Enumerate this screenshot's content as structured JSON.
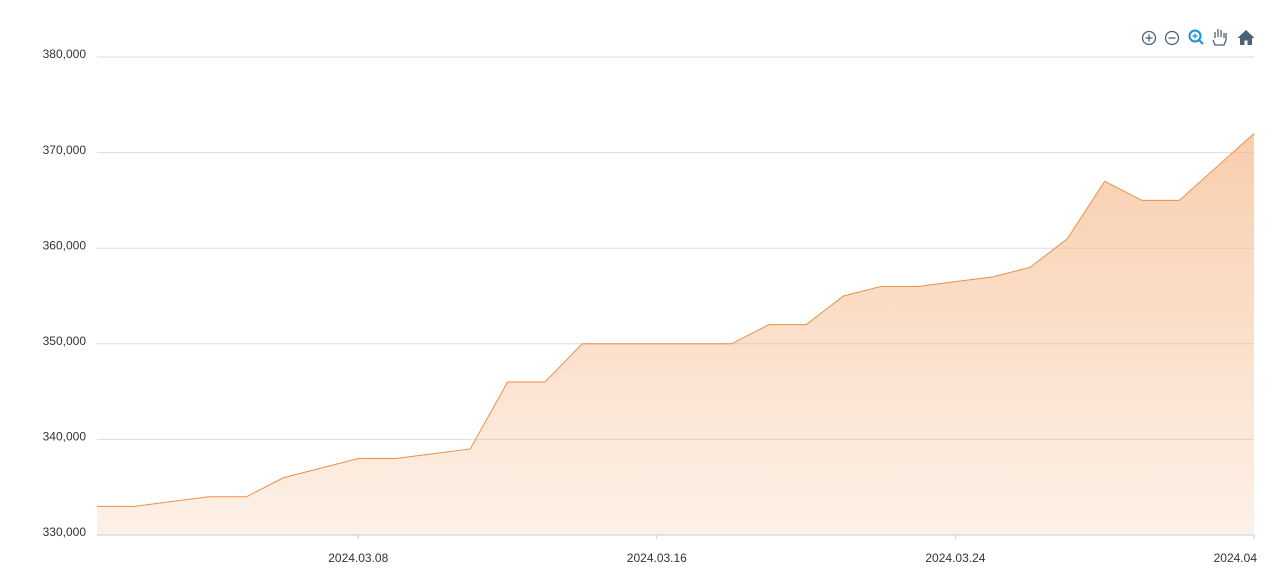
{
  "chart_data": {
    "type": "area",
    "x": [
      "2024.03.01",
      "2024.03.02",
      "2024.03.03",
      "2024.03.04",
      "2024.03.05",
      "2024.03.06",
      "2024.03.07",
      "2024.03.08",
      "2024.03.09",
      "2024.03.10",
      "2024.03.11",
      "2024.03.12",
      "2024.03.13",
      "2024.03.14",
      "2024.03.15",
      "2024.03.16",
      "2024.03.17",
      "2024.03.18",
      "2024.03.19",
      "2024.03.20",
      "2024.03.21",
      "2024.03.22",
      "2024.03.23",
      "2024.03.24",
      "2024.03.25",
      "2024.03.26",
      "2024.03.27",
      "2024.03.28",
      "2024.03.29",
      "2024.03.30",
      "2024.03.31",
      "2024.04.01"
    ],
    "series": [
      {
        "color": "#e8914a",
        "values": [
          333000,
          333000,
          333500,
          334000,
          334000,
          336000,
          337000,
          338000,
          338000,
          338500,
          339000,
          346000,
          346000,
          350000,
          350000,
          350000,
          350000,
          350000,
          352000,
          352000,
          355000,
          356000,
          356000,
          356500,
          357000,
          358000,
          361000,
          367000,
          365000,
          365000,
          368500,
          372000
        ]
      }
    ],
    "xlim": [
      "2024.03.01",
      "2024.04.01"
    ],
    "xticks": [
      "2024.03.08",
      "2024.03.16",
      "2024.03.24",
      {
        "value": "2024.04.01",
        "label": "2024.04"
      }
    ],
    "ylim": [
      330000,
      380000
    ],
    "yticks": [
      {
        "value": 330000,
        "label": "330,000"
      },
      {
        "value": 340000,
        "label": "340,000"
      },
      {
        "value": 350000,
        "label": "350,000"
      },
      {
        "value": 360000,
        "label": "360,000"
      },
      {
        "value": 370000,
        "label": "370,000"
      },
      {
        "value": 380000,
        "label": "380,000"
      }
    ],
    "grid": true
  }
}
